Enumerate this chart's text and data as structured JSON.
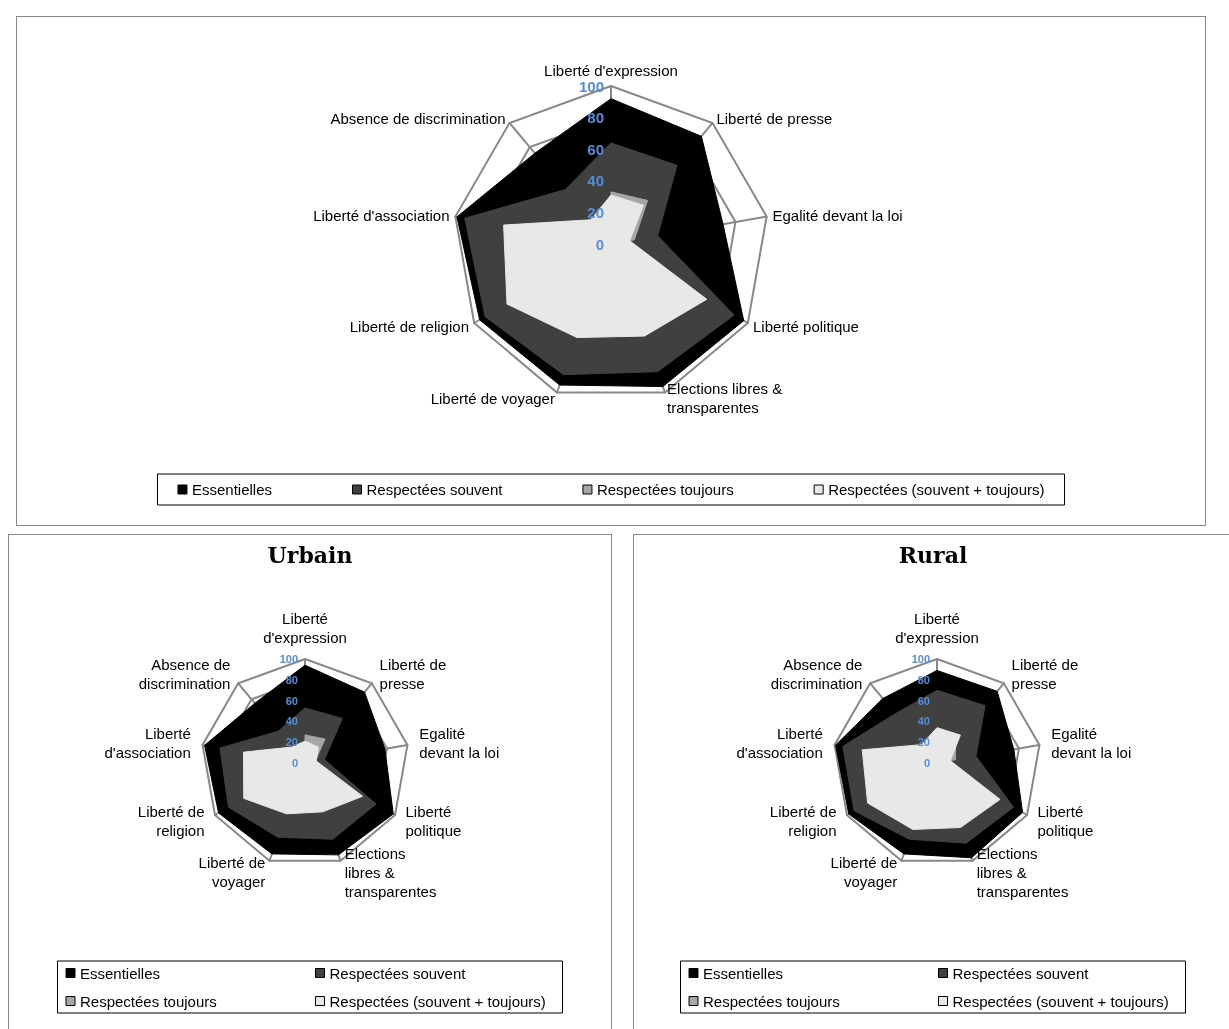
{
  "chart_data": [
    {
      "type": "radar",
      "categories": [
        "Liberté d'expression",
        "Liberté de presse",
        "Egalité devant la loi",
        "Liberté politique",
        "Elections libres & transparentes",
        "Liberté de voyager",
        "Liberté de religion",
        "Liberté d'association",
        "Absence de discrimination"
      ],
      "series": [
        {
          "name": "Essentielles",
          "color": "#000000",
          "values": [
            92,
            89,
            72,
            97,
            96,
            95,
            96,
            99,
            75
          ]
        },
        {
          "name": "Respectées souvent",
          "color": "#404040",
          "values": [
            64,
            65,
            30,
            90,
            86,
            88,
            92,
            94,
            45
          ]
        },
        {
          "name": "Respectées toujours",
          "color": "#a6a6a6",
          "values": [
            33,
            36,
            15,
            null,
            null,
            null,
            null,
            null,
            null
          ]
        },
        {
          "name": "Respectées (souvent + toujours)",
          "color": "#e8e8e8",
          "values": [
            31,
            32,
            12,
            70,
            62,
            63,
            76,
            69,
            20
          ]
        }
      ],
      "ylim": [
        0,
        100
      ],
      "yticks": [
        0,
        20,
        40,
        60,
        80,
        100
      ],
      "grid": true,
      "legend": "bottom"
    },
    {
      "type": "radar",
      "title": "Urbain",
      "categories": [
        "Liberté d'expression",
        "Liberté de presse",
        "Egalité devant la loi",
        "Liberté politique",
        "Elections libres & transparentes",
        "Liberté de voyager",
        "Liberté de religion",
        "Liberté d'association",
        "Absence de discrimination"
      ],
      "series": [
        {
          "name": "Essentielles",
          "color": "#000000",
          "values": [
            94,
            89,
            78,
            98,
            94,
            93,
            96,
            98,
            75
          ]
        },
        {
          "name": "Respectées souvent",
          "color": "#404040",
          "values": [
            53,
            56,
            19,
            79,
            78,
            76,
            85,
            83,
            40
          ]
        },
        {
          "name": "Respectées toujours",
          "color": "#a6a6a6",
          "values": [
            27,
            30,
            10,
            null,
            null,
            null,
            null,
            null,
            null
          ]
        },
        {
          "name": "Respectées (souvent + toujours)",
          "color": "#e8e8e8",
          "values": [
            21,
            20,
            11,
            64,
            50,
            52,
            68,
            60,
            20
          ]
        }
      ],
      "ylim": [
        0,
        100
      ],
      "yticks": [
        0,
        20,
        40,
        60,
        80,
        100
      ],
      "grid": true,
      "legend": "bottom"
    },
    {
      "type": "radar",
      "title": "Rural",
      "categories": [
        "Liberté d'expression",
        "Liberté de presse",
        "Egalité devant la loi",
        "Liberté politique",
        "Elections libres & transparentes",
        "Liberté de voyager",
        "Liberté de religion",
        "Liberté d'association",
        "Absence de discrimination"
      ],
      "series": [
        {
          "name": "Essentielles",
          "color": "#000000",
          "values": [
            89,
            90,
            75,
            95,
            97,
            93,
            98,
            99,
            81
          ]
        },
        {
          "name": "Respectées souvent",
          "color": "#404040",
          "values": [
            70,
            72,
            38,
            85,
            82,
            78,
            92,
            92,
            62
          ]
        },
        {
          "name": "Respectées toujours",
          "color": "#a6a6a6",
          "values": [
            null,
            28,
            18,
            null,
            null,
            null,
            null,
            null,
            null
          ]
        },
        {
          "name": "Respectées (souvent + toujours)",
          "color": "#e8e8e8",
          "values": [
            34,
            35,
            13,
            70,
            66,
            68,
            77,
            73,
            23
          ]
        }
      ],
      "ylim": [
        0,
        100
      ],
      "yticks": [
        0,
        20,
        40,
        60,
        80,
        100
      ],
      "grid": true,
      "legend": "bottom"
    }
  ]
}
